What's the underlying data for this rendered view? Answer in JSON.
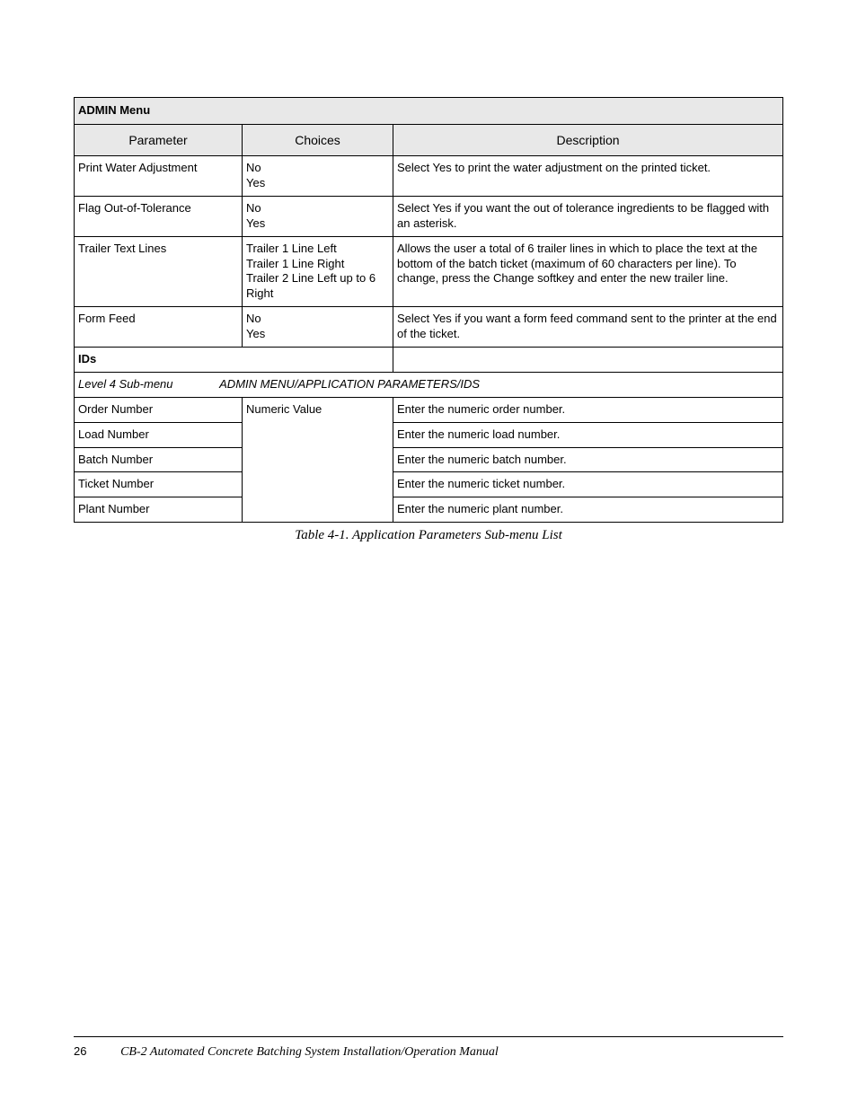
{
  "table": {
    "title": "ADMIN Menu",
    "headers": {
      "parameter": "Parameter",
      "choices": "Choices",
      "description": "Description"
    },
    "rows": [
      {
        "parameter": "Print Water Adjustment",
        "choices": "No\nYes",
        "description": "Select Yes to print the water adjustment on the printed ticket."
      },
      {
        "parameter": "Flag Out-of-Tolerance",
        "choices": "No\nYes",
        "description": "Select Yes if you want the out of tolerance ingredients to be flagged with an asterisk."
      },
      {
        "parameter": "Trailer Text Lines",
        "choices": "Trailer 1 Line Left\nTrailer 1 Line Right\nTrailer 2 Line Left up to 6 Right",
        "description": "Allows the user a total of 6 trailer lines in which to place the text at the bottom of the batch ticket (maximum of 60 characters per line). To change, press the Change softkey and enter the new trailer line."
      },
      {
        "parameter": "Form Feed",
        "choices": "No\nYes",
        "description": "Select Yes if you want a form feed command sent to the printer at the end of the ticket."
      }
    ],
    "section": {
      "label": "IDs"
    },
    "submenu": {
      "label": "Level 4 Sub-menu",
      "path": "ADMIN MENU/APPLICATION PARAMETERS/IDS"
    },
    "ids_choices": "Numeric Value",
    "ids_rows": [
      {
        "parameter": "Order Number",
        "description": "Enter the numeric order number."
      },
      {
        "parameter": "Load Number",
        "description": "Enter the numeric load number."
      },
      {
        "parameter": "Batch Number",
        "description": "Enter the numeric batch number."
      },
      {
        "parameter": "Ticket Number",
        "description": "Enter the numeric ticket number."
      },
      {
        "parameter": "Plant Number",
        "description": "Enter the numeric plant number."
      }
    ]
  },
  "caption": "Table 4-1. Application Parameters Sub-menu List",
  "footer": {
    "page_number": "26",
    "doc_title": "CB-2 Automated Concrete Batching System Installation/Operation Manual"
  }
}
